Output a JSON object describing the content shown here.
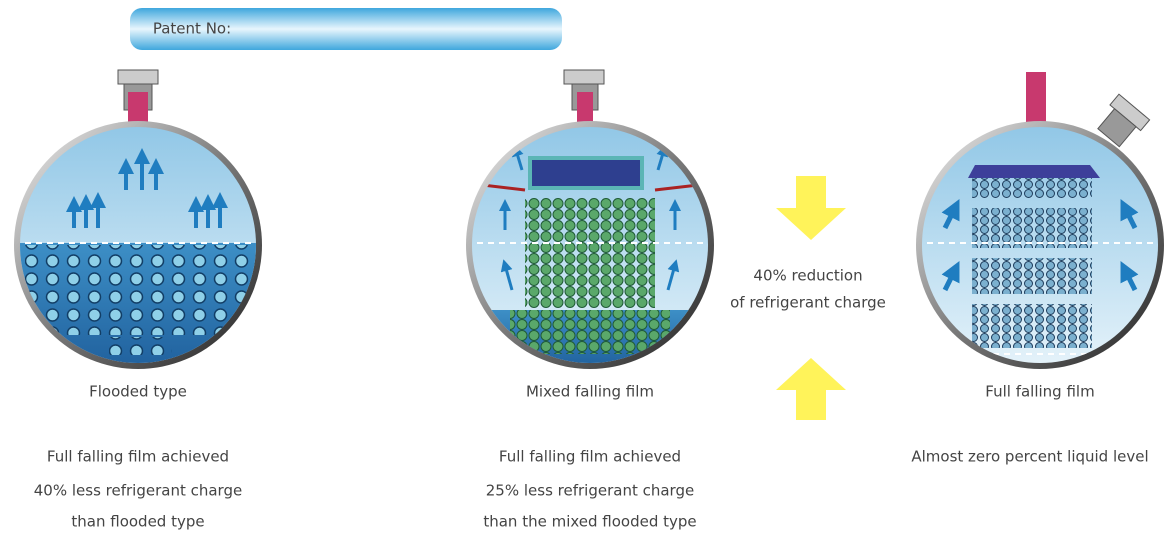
{
  "patent_label": "Patent No:",
  "center_note": {
    "lines": [
      "40% reduction",
      "of refrigerant charge"
    ]
  },
  "evaporators": [
    {
      "name": "Flooded type",
      "description": [
        "Full falling film achieved",
        "40% less refrigerant charge",
        "than flooded type"
      ]
    },
    {
      "name": "Mixed falling film",
      "description": [
        "Full falling film achieved",
        "25% less refrigerant charge",
        "than the mixed flooded type"
      ]
    },
    {
      "name": "Full falling film",
      "description": [
        "Almost zero percent liquid level"
      ]
    }
  ]
}
